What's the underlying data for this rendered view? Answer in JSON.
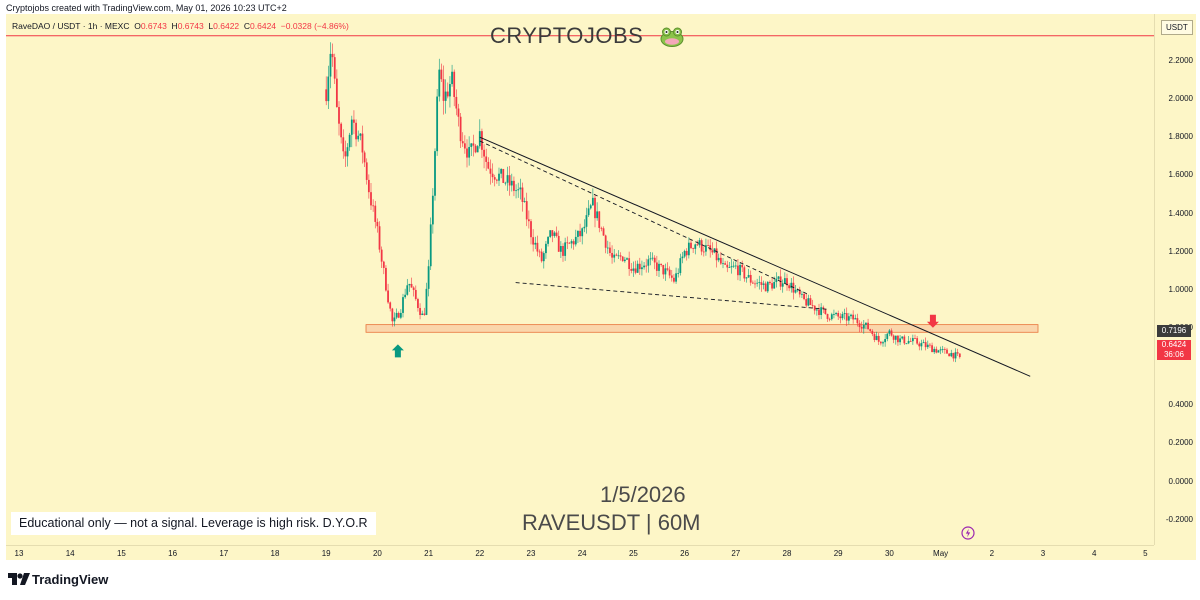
{
  "credit": "Cryptojobs created with TradingView.com, May 01, 2026 10:23 UTC+2",
  "symbol": {
    "name": "RaveDAO / USDT · 1h · MEXC",
    "o_label": "O",
    "o": "0.6743",
    "h_label": "H",
    "h": "0.6743",
    "l_label": "L",
    "l": "0.6422",
    "c_label": "C",
    "c": "0.6424",
    "change": "−0.0328 (−4.86%)"
  },
  "watermark": "CRYPTOJOBS",
  "overlay": {
    "date": "1/5/2026",
    "pair": "RAVEUSDT | 60M",
    "disclaimer": "Educational only — not a signal. Leverage is high risk. D.Y.O.R"
  },
  "price_scale": {
    "currency": "USDT",
    "ticks": [
      "2.2000",
      "2.0000",
      "1.8000",
      "1.6000",
      "1.4000",
      "1.2000",
      "1.0000",
      "0.8000",
      "0.4000",
      "0.2000",
      "0.0000",
      "-0.2000"
    ],
    "level_badge": "0.7196",
    "last_price_badge": "0.6424",
    "countdown": "36:06"
  },
  "time_scale": {
    "ticks": [
      "13",
      "14",
      "15",
      "16",
      "17",
      "18",
      "19",
      "20",
      "21",
      "22",
      "23",
      "24",
      "25",
      "26",
      "27",
      "28",
      "29",
      "30",
      "May",
      "2",
      "3",
      "4",
      "5"
    ]
  },
  "footer": {
    "brand": "TradingView"
  },
  "colors": {
    "background": "#fdf6c7",
    "up": "#089981",
    "down": "#f23645",
    "support_zone": "#f8c9a0",
    "resistance_line": "#f23645",
    "trendline": "#131722"
  },
  "icons": {
    "long_arrow": "green-up-arrow-icon",
    "short_arrow": "red-down-arrow-icon",
    "frog": "frog-emoji-icon",
    "flash": "lightning-icon"
  },
  "chart_data": {
    "type": "candlestick",
    "interval": "1h",
    "x_unit": "day index (13 = Apr 13 2026, 31 = May 1, 32 = May 2)",
    "ylim": [
      -0.25,
      2.35
    ],
    "grid": false,
    "horizontal_levels": [
      {
        "name": "resistance",
        "value": 2.33
      },
      {
        "name": "support-zone",
        "from": 0.78,
        "to": 0.82
      }
    ],
    "trendlines": [
      {
        "name": "descending-resistance",
        "style": "solid",
        "from": [
          22.0,
          1.8
        ],
        "to": [
          32.75,
          0.55
        ]
      },
      {
        "name": "upper-channel",
        "style": "dashed",
        "from": [
          22.0,
          1.78
        ],
        "to": [
          28.4,
          0.98
        ]
      },
      {
        "name": "lower-channel",
        "style": "dashed",
        "from": [
          22.7,
          1.04
        ],
        "to": [
          28.8,
          0.9
        ]
      }
    ],
    "markers": [
      {
        "name": "long-signal",
        "direction": "up",
        "x": 20.4,
        "y": 0.68
      },
      {
        "name": "short-signal",
        "direction": "down",
        "x": 30.85,
        "y": 0.84
      }
    ],
    "price_path": [
      [
        19.0,
        2.05
      ],
      [
        19.1,
        2.3
      ],
      [
        19.2,
        1.95
      ],
      [
        19.35,
        1.65
      ],
      [
        19.5,
        1.9
      ],
      [
        19.7,
        1.75
      ],
      [
        19.85,
        1.5
      ],
      [
        20.0,
        1.3
      ],
      [
        20.15,
        1.05
      ],
      [
        20.3,
        0.82
      ],
      [
        20.45,
        0.9
      ],
      [
        20.6,
        1.05
      ],
      [
        20.75,
        0.95
      ],
      [
        20.9,
        0.85
      ],
      [
        21.0,
        1.1
      ],
      [
        21.1,
        1.6
      ],
      [
        21.2,
        2.15
      ],
      [
        21.3,
        2.0
      ],
      [
        21.45,
        2.1
      ],
      [
        21.6,
        1.85
      ],
      [
        21.8,
        1.7
      ],
      [
        22.0,
        1.82
      ],
      [
        22.15,
        1.65
      ],
      [
        22.35,
        1.6
      ],
      [
        22.6,
        1.55
      ],
      [
        22.8,
        1.5
      ],
      [
        23.0,
        1.3
      ],
      [
        23.2,
        1.15
      ],
      [
        23.4,
        1.3
      ],
      [
        23.6,
        1.2
      ],
      [
        23.8,
        1.25
      ],
      [
        24.0,
        1.3
      ],
      [
        24.2,
        1.45
      ],
      [
        24.4,
        1.3
      ],
      [
        24.6,
        1.15
      ],
      [
        24.8,
        1.18
      ],
      [
        25.0,
        1.12
      ],
      [
        25.3,
        1.15
      ],
      [
        25.6,
        1.1
      ],
      [
        25.8,
        1.05
      ],
      [
        26.0,
        1.2
      ],
      [
        26.2,
        1.25
      ],
      [
        26.4,
        1.22
      ],
      [
        26.6,
        1.18
      ],
      [
        26.8,
        1.1
      ],
      [
        27.0,
        1.12
      ],
      [
        27.3,
        1.05
      ],
      [
        27.6,
        1.02
      ],
      [
        27.9,
        1.05
      ],
      [
        28.0,
        1.05
      ],
      [
        28.3,
        0.95
      ],
      [
        28.6,
        0.9
      ],
      [
        28.8,
        0.87
      ],
      [
        29.0,
        0.86
      ],
      [
        29.3,
        0.85
      ],
      [
        29.6,
        0.8
      ],
      [
        29.8,
        0.73
      ],
      [
        30.0,
        0.78
      ],
      [
        30.2,
        0.74
      ],
      [
        30.5,
        0.73
      ],
      [
        30.8,
        0.7
      ],
      [
        31.0,
        0.68
      ],
      [
        31.2,
        0.67
      ],
      [
        31.4,
        0.6424
      ]
    ]
  }
}
